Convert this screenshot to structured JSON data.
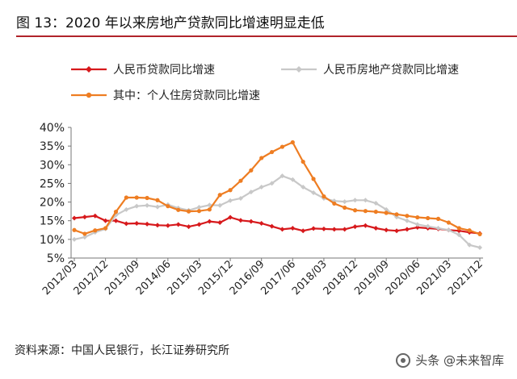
{
  "header": {
    "title": "图 13：2020 年以来房地产贷款同比增速明显走低"
  },
  "footer": {
    "source": "资料来源：中国人民银行，长江证券研究所",
    "watermark": "头条 @未来智库"
  },
  "colors": {
    "accent_rule": "#b0232a",
    "series_red": "#d7191c",
    "series_grey": "#c8c8c8",
    "series_orange": "#ee7d22"
  },
  "chart_data": {
    "type": "line",
    "title": "",
    "xlabel": "",
    "ylabel": "",
    "ylim": [
      5,
      40
    ],
    "yticks": [
      5,
      10,
      15,
      20,
      25,
      30,
      35,
      40
    ],
    "ytick_labels": [
      "5%",
      "10%",
      "15%",
      "20%",
      "25%",
      "30%",
      "35%",
      "40%"
    ],
    "grid": false,
    "legend_position": "top",
    "x_tick_labels": [
      "2012/03",
      "2012/12",
      "2013/09",
      "2014/06",
      "2015/03",
      "2015/12",
      "2016/09",
      "2017/06",
      "2018/03",
      "2018/12",
      "2019/09",
      "2020/06",
      "2021/03",
      "2021/12"
    ],
    "x": [
      "2012/03",
      "2012/06",
      "2012/09",
      "2012/12",
      "2013/03",
      "2013/06",
      "2013/09",
      "2013/12",
      "2014/03",
      "2014/06",
      "2014/09",
      "2014/12",
      "2015/03",
      "2015/06",
      "2015/09",
      "2015/12",
      "2016/03",
      "2016/06",
      "2016/09",
      "2016/12",
      "2017/03",
      "2017/06",
      "2017/09",
      "2017/12",
      "2018/03",
      "2018/06",
      "2018/09",
      "2018/12",
      "2019/03",
      "2019/06",
      "2019/09",
      "2019/12",
      "2020/03",
      "2020/06",
      "2020/09",
      "2020/12",
      "2021/03",
      "2021/06",
      "2021/09",
      "2021/12"
    ],
    "series": [
      {
        "name": "人民币贷款同比增速",
        "color": "#d7191c",
        "marker": "diamond",
        "values": [
          15.7,
          16.0,
          16.3,
          15.0,
          15.0,
          14.2,
          14.3,
          14.1,
          13.8,
          13.7,
          14.0,
          13.4,
          14.0,
          14.8,
          14.5,
          15.9,
          15.1,
          14.8,
          14.3,
          13.5,
          12.7,
          13.0,
          12.3,
          12.9,
          12.8,
          12.7,
          12.7,
          13.4,
          13.7,
          13.0,
          12.5,
          12.3,
          12.7,
          13.2,
          13.0,
          12.8,
          12.5,
          12.3,
          11.9,
          11.6
        ]
      },
      {
        "name": "人民币房地产贷款同比增速",
        "color": "#c8c8c8",
        "marker": "diamond",
        "values": [
          10.0,
          10.6,
          11.9,
          12.8,
          16.5,
          18.0,
          18.9,
          19.1,
          18.7,
          19.3,
          18.4,
          17.8,
          18.6,
          19.2,
          19.1,
          20.4,
          21.0,
          22.7,
          24.0,
          25.0,
          27.0,
          26.0,
          24.0,
          22.5,
          21.0,
          20.3,
          20.1,
          20.5,
          20.5,
          19.7,
          18.0,
          16.0,
          15.0,
          14.0,
          13.5,
          13.0,
          12.5,
          11.2,
          8.5,
          7.8
        ]
      },
      {
        "name": "其中：个人住房贷款同比增速",
        "color": "#ee7d22",
        "marker": "circle",
        "values": [
          12.5,
          11.5,
          12.4,
          13.0,
          17.4,
          21.2,
          21.2,
          21.1,
          20.5,
          18.9,
          17.9,
          17.5,
          17.6,
          18.0,
          21.9,
          23.2,
          25.7,
          28.5,
          31.8,
          33.4,
          34.8,
          36.0,
          30.8,
          26.2,
          21.5,
          19.6,
          18.5,
          17.8,
          17.6,
          17.4,
          17.1,
          16.7,
          16.3,
          15.9,
          15.7,
          15.5,
          14.5,
          13.0,
          12.4,
          11.4
        ]
      }
    ]
  }
}
